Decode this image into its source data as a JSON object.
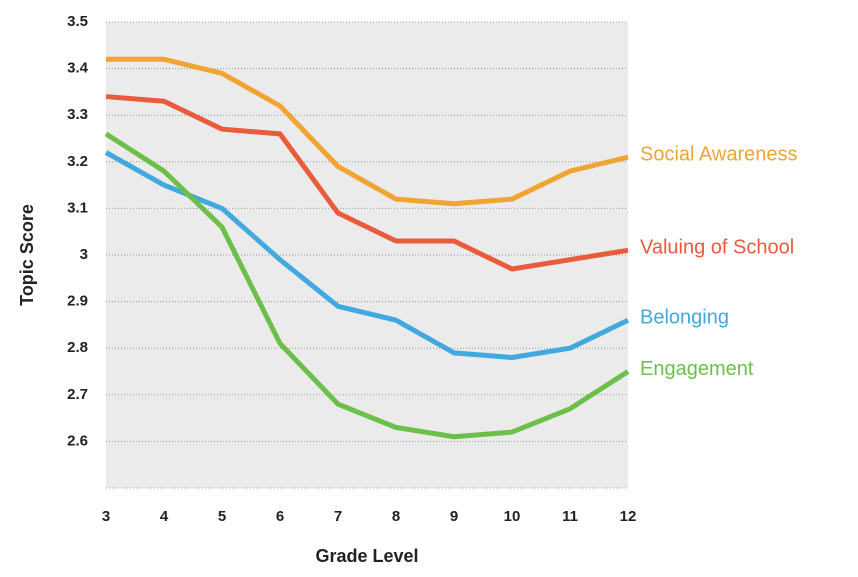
{
  "chart_data": {
    "type": "line",
    "x_label": "Grade Level",
    "y_label": "Topic Score",
    "x": [
      3,
      4,
      5,
      6,
      7,
      8,
      9,
      10,
      11,
      12
    ],
    "xlim": [
      3,
      12
    ],
    "xticks": [
      3,
      4,
      5,
      6,
      7,
      8,
      9,
      10,
      11,
      12
    ],
    "ylim": [
      2.5,
      3.5
    ],
    "yticks": [
      2.6,
      2.7,
      2.8,
      2.9,
      3,
      3.1,
      3.2,
      3.3,
      3.4,
      3.5
    ],
    "grid": true,
    "series": [
      {
        "name": "Social Awareness",
        "color": "#f0a431",
        "values": [
          3.42,
          3.42,
          3.39,
          3.32,
          3.19,
          3.12,
          3.11,
          3.12,
          3.18,
          3.21
        ]
      },
      {
        "name": "Valuing of School",
        "color": "#ea5b3d",
        "values": [
          3.34,
          3.33,
          3.27,
          3.26,
          3.09,
          3.03,
          3.03,
          2.97,
          2.99,
          3.01
        ]
      },
      {
        "name": "Belonging",
        "color": "#42a9de",
        "values": [
          3.22,
          3.15,
          3.1,
          2.99,
          2.89,
          2.86,
          2.79,
          2.78,
          2.8,
          2.86
        ]
      },
      {
        "name": "Engagement",
        "color": "#6cc04a",
        "values": [
          3.26,
          3.18,
          3.06,
          2.81,
          2.68,
          2.63,
          2.61,
          2.62,
          2.67,
          2.75
        ]
      }
    ]
  }
}
